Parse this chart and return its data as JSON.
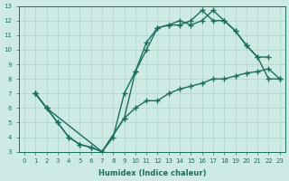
{
  "xlabel": "Humidex (Indice chaleur)",
  "bg_color": "#ceeae4",
  "grid_color": "#aed4cc",
  "line_color": "#1a6e5e",
  "xlim": [
    -0.5,
    23.5
  ],
  "ylim": [
    3,
    13
  ],
  "xticks": [
    0,
    1,
    2,
    3,
    4,
    5,
    6,
    7,
    8,
    9,
    10,
    11,
    12,
    13,
    14,
    15,
    16,
    17,
    18,
    19,
    20,
    21,
    22,
    23
  ],
  "yticks": [
    3,
    4,
    5,
    6,
    7,
    8,
    9,
    10,
    11,
    12,
    13
  ],
  "line1_x": [
    1,
    2,
    3,
    4,
    5,
    6,
    7,
    9,
    10,
    11,
    12,
    13,
    14,
    15,
    16,
    17,
    18,
    19,
    20,
    21,
    22,
    23
  ],
  "line1_y": [
    7,
    6,
    5,
    4,
    3.5,
    3.3,
    3,
    5.3,
    8.5,
    10.0,
    11.5,
    11.7,
    11.7,
    12.0,
    12.7,
    12.0,
    12.0,
    11.3,
    10.3,
    9.5,
    8.0,
    8.0
  ],
  "line2_x": [
    1,
    2,
    3,
    4,
    5,
    6,
    7,
    8,
    9,
    10,
    11,
    12,
    13,
    14,
    15,
    16,
    17,
    18,
    19,
    20,
    21,
    22
  ],
  "line2_y": [
    7,
    6,
    5,
    4,
    3.5,
    3.3,
    3,
    4.0,
    7.0,
    8.5,
    10.5,
    11.5,
    11.7,
    12.0,
    11.7,
    12.0,
    12.7,
    12.0,
    11.3,
    10.3,
    9.5,
    9.5
  ],
  "line3_x": [
    1,
    2,
    7,
    9,
    10,
    11,
    12,
    13,
    14,
    15,
    16,
    17,
    18,
    19,
    20,
    21,
    22,
    23
  ],
  "line3_y": [
    7,
    6,
    3,
    5.3,
    6.0,
    6.5,
    6.5,
    7.0,
    7.3,
    7.5,
    7.7,
    8.0,
    8.0,
    8.2,
    8.4,
    8.5,
    8.7,
    8.0
  ]
}
